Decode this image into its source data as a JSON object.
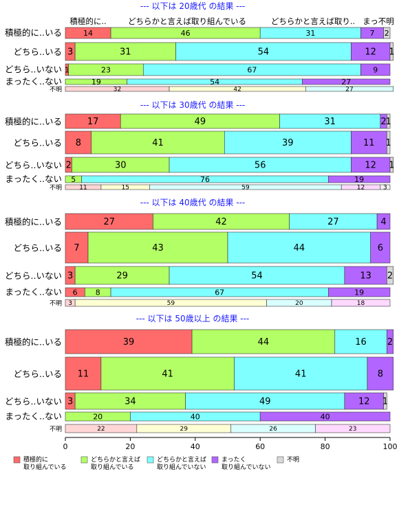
{
  "chart_data": {
    "type": "bar",
    "orientation": "horizontal",
    "stacked": true,
    "xlim": [
      0,
      100
    ],
    "x_ticks": [
      "0",
      "20",
      "40",
      "60",
      "80",
      "100"
    ],
    "top_headers": [
      "積極的に..",
      "どちらかと言えば取り組んでいる",
      "どちらかと言えば取り..",
      "まっ不明"
    ],
    "legend_position": "bottom",
    "legend": [
      {
        "label": "積極的に\n取り組んでいる",
        "color": "#FF6B6B"
      },
      {
        "label": "どちらかと言えば\n取り組んでいる",
        "color": "#B3FF66"
      },
      {
        "label": "どちらかと言えば\n取り組んでいない",
        "color": "#7FFFFF"
      },
      {
        "label": "まったく\n取り組んでいない",
        "color": "#B266FF"
      },
      {
        "label": "不明",
        "color": "#D9D9D9"
      }
    ],
    "colors": [
      "#FF6B6B",
      "#B3FF66",
      "#7FFFFF",
      "#B266FF",
      "#D9D9D9"
    ],
    "faded_colors": [
      "#FFD6D6",
      "#FFFFD4",
      "#D9FFFF",
      "#FFD9FF",
      "#F2F2F2"
    ],
    "panels": [
      {
        "title": "--- 以下は 20歳代 の結果 ---",
        "rows": [
          {
            "label": "積極的に..いる",
            "values": [
              14,
              46,
              31,
              7,
              2
            ]
          },
          {
            "label": "どちら..いる",
            "values": [
              3,
              31,
              54,
              12,
              1
            ]
          },
          {
            "label": "どちら..いない",
            "values": [
              1,
              23,
              67,
              9,
              0
            ]
          },
          {
            "label": "まったく..ない",
            "values": [
              0,
              19,
              54,
              27,
              0
            ]
          },
          {
            "label": "不明",
            "values": [
              32,
              42,
              27,
              0,
              0
            ]
          }
        ]
      },
      {
        "title": "--- 以下は 30歳代 の結果 ---",
        "rows": [
          {
            "label": "積極的に..いる",
            "values": [
              17,
              49,
              31,
              2,
              1
            ]
          },
          {
            "label": "どちら..いる",
            "values": [
              8,
              41,
              39,
              11,
              1
            ]
          },
          {
            "label": "どちら..いない",
            "values": [
              2,
              30,
              56,
              12,
              1
            ]
          },
          {
            "label": "まったく..ない",
            "values": [
              0,
              5,
              76,
              19,
              0
            ]
          },
          {
            "label": "不明",
            "values": [
              11,
              15,
              59,
              12,
              3
            ]
          }
        ]
      },
      {
        "title": "--- 以下は 40歳代 の結果 ---",
        "rows": [
          {
            "label": "積極的に..いる",
            "values": [
              27,
              42,
              27,
              4,
              0
            ]
          },
          {
            "label": "どちら..いる",
            "values": [
              7,
              43,
              44,
              6,
              0
            ]
          },
          {
            "label": "どちら..いない",
            "values": [
              3,
              29,
              54,
              13,
              2
            ]
          },
          {
            "label": "まったく..ない",
            "values": [
              6,
              8,
              67,
              19,
              0
            ]
          },
          {
            "label": "不明",
            "values": [
              3,
              59,
              20,
              18,
              0
            ]
          }
        ]
      },
      {
        "title": "--- 以下は 50歳以上 の結果 ---",
        "rows": [
          {
            "label": "積極的に..いる",
            "values": [
              39,
              44,
              16,
              2,
              0
            ]
          },
          {
            "label": "どちら..いる",
            "values": [
              11,
              41,
              41,
              8,
              0
            ]
          },
          {
            "label": "どちら..いない",
            "values": [
              3,
              34,
              49,
              12,
              1
            ]
          },
          {
            "label": "まったく..ない",
            "values": [
              0,
              20,
              40,
              40,
              0
            ]
          },
          {
            "label": "不明",
            "values": [
              22,
              29,
              26,
              23,
              0
            ]
          }
        ]
      }
    ]
  }
}
